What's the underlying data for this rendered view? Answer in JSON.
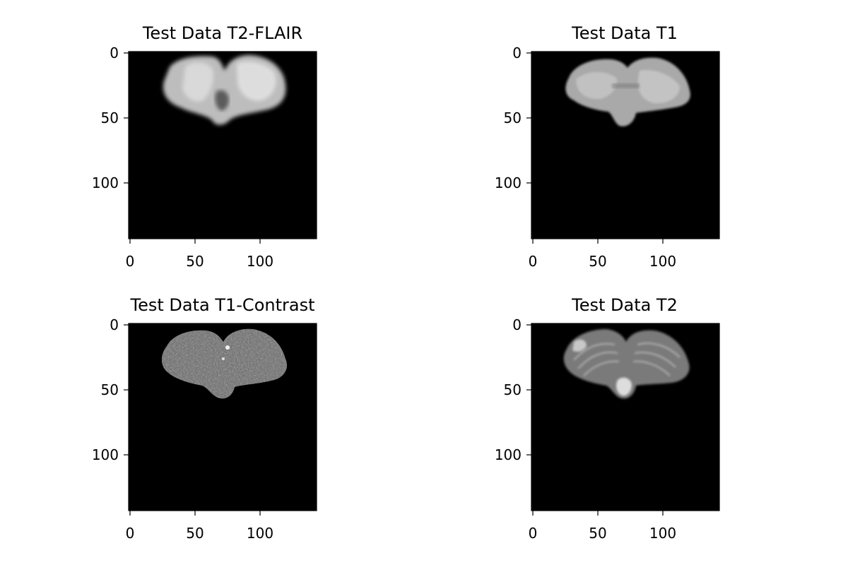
{
  "figure": {
    "panels": [
      {
        "title": "Test Data T2-FLAIR",
        "modality": "T2-FLAIR",
        "x_ticks": [
          "0",
          "50",
          "100"
        ],
        "y_ticks": [
          "0",
          "50",
          "100"
        ]
      },
      {
        "title": "Test Data T1",
        "modality": "T1",
        "x_ticks": [
          "0",
          "50",
          "100"
        ],
        "y_ticks": [
          "0",
          "50",
          "100"
        ]
      },
      {
        "title": "Test Data T1-Contrast",
        "modality": "T1-Contrast",
        "x_ticks": [
          "0",
          "50",
          "100"
        ],
        "y_ticks": [
          "0",
          "50",
          "100"
        ]
      },
      {
        "title": "Test Data T2",
        "modality": "T2",
        "x_ticks": [
          "0",
          "50",
          "100"
        ],
        "y_ticks": [
          "0",
          "50",
          "100"
        ]
      }
    ],
    "image_extent": [
      0,
      145
    ],
    "background_color": "#000000",
    "colormap": "gray"
  }
}
